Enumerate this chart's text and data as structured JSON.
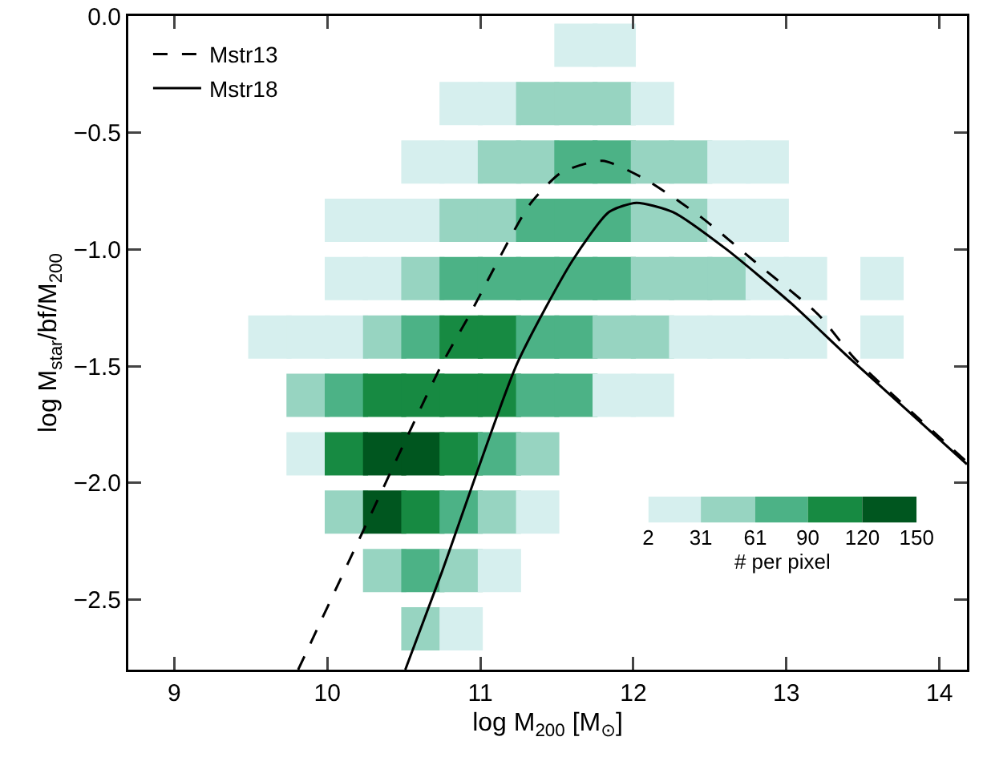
{
  "chart_data": {
    "type": "scatter",
    "xlabel": "log M$_{200}$ [M$_{⊙}$]",
    "ylabel": "log M$_{star}$/bf/M$_{200}$",
    "x2label": "# per pixel",
    "xlim": [
      8.7,
      14.18
    ],
    "ylim": [
      -2.8,
      0
    ],
    "xticks": [
      9,
      10,
      11,
      12,
      13,
      14
    ],
    "yticks": [
      {
        "value": 0,
        "label": "0.0"
      },
      {
        "value": -0.5,
        "label": "−0.5"
      },
      {
        "value": -1,
        "label": "−1.0"
      },
      {
        "value": -1.5,
        "label": "−1.5"
      },
      {
        "value": -2,
        "label": "−2.0"
      },
      {
        "value": -2.5,
        "label": "−2.5"
      }
    ],
    "x2lim": [
      2,
      150
    ],
    "x2ticks": [
      2,
      31,
      61,
      90,
      120,
      150
    ],
    "legend": "top left",
    "grid": false,
    "colors": [
      "#d6efee",
      "#97d4c1",
      "#4cb286",
      "#178a42",
      "#00561f"
    ],
    "series": [
      {
        "marker": "square",
        "x": [
          11.625,
          11.875,
          10.875,
          11.125,
          11.375,
          11.625,
          11.875,
          12.125,
          10.625,
          10.875,
          11.125,
          11.375,
          11.625,
          11.875,
          12.125,
          12.375,
          12.625,
          12.875,
          10.125,
          10.375,
          10.625,
          10.875,
          11.125,
          11.375,
          11.625,
          11.875,
          12.125,
          12.375,
          12.625,
          12.875,
          10.125,
          10.375,
          10.625,
          10.875,
          11.125,
          11.375,
          11.625,
          11.875,
          12.125,
          12.375,
          12.625,
          12.875,
          13.125,
          13.625,
          9.625,
          9.875,
          10.125,
          10.375,
          10.625,
          10.875,
          11.125,
          11.375,
          11.625,
          11.875,
          12.125,
          12.375,
          12.625,
          12.875,
          13.125,
          13.625,
          9.875,
          10.125,
          10.375,
          10.625,
          10.875,
          11.125,
          11.375,
          11.625,
          11.875,
          12.125,
          9.875,
          10.125,
          10.375,
          10.625,
          10.875,
          11.125,
          11.375,
          10.125,
          10.375,
          10.625,
          10.875,
          11.125,
          11.375,
          10.375,
          10.625,
          10.875,
          11.125,
          10.625,
          10.875
        ],
        "values": [
          -0.125,
          -0.125,
          -0.375,
          -0.375,
          -0.375,
          -0.375,
          -0.375,
          -0.375,
          -0.625,
          -0.625,
          -0.625,
          -0.625,
          -0.625,
          -0.625,
          -0.625,
          -0.625,
          -0.625,
          -0.625,
          -0.875,
          -0.875,
          -0.875,
          -0.875,
          -0.875,
          -0.875,
          -0.875,
          -0.875,
          -0.875,
          -0.875,
          -0.875,
          -0.875,
          -1.125,
          -1.125,
          -1.125,
          -1.125,
          -1.125,
          -1.125,
          -1.125,
          -1.125,
          -1.125,
          -1.125,
          -1.125,
          -1.125,
          -1.125,
          -1.125,
          -1.375,
          -1.375,
          -1.375,
          -1.375,
          -1.375,
          -1.375,
          -1.375,
          -1.375,
          -1.375,
          -1.375,
          -1.375,
          -1.375,
          -1.375,
          -1.375,
          -1.375,
          -1.375,
          -1.625,
          -1.625,
          -1.625,
          -1.625,
          -1.625,
          -1.625,
          -1.625,
          -1.625,
          -1.625,
          -1.625,
          -1.875,
          -1.875,
          -1.875,
          -1.875,
          -1.875,
          -1.875,
          -1.875,
          -2.125,
          -2.125,
          -2.125,
          -2.125,
          -2.125,
          -2.125,
          -2.375,
          -2.375,
          -2.375,
          -2.375,
          -2.625,
          -2.625
        ],
        "colors": [
          "#d6efee",
          "#d6efee",
          "#d6efee",
          "#d6efee",
          "#97d4c1",
          "#97d4c1",
          "#97d4c1",
          "#d6efee",
          "#d6efee",
          "#d6efee",
          "#97d4c1",
          "#97d4c1",
          "#4cb286",
          "#4cb286",
          "#97d4c1",
          "#97d4c1",
          "#d6efee",
          "#d6efee",
          "#d6efee",
          "#d6efee",
          "#d6efee",
          "#97d4c1",
          "#97d4c1",
          "#4cb286",
          "#4cb286",
          "#4cb286",
          "#97d4c1",
          "#97d4c1",
          "#d6efee",
          "#d6efee",
          "#d6efee",
          "#d6efee",
          "#97d4c1",
          "#4cb286",
          "#4cb286",
          "#4cb286",
          "#4cb286",
          "#4cb286",
          "#97d4c1",
          "#97d4c1",
          "#97d4c1",
          "#d6efee",
          "#d6efee",
          "#d6efee",
          "#d6efee",
          "#d6efee",
          "#d6efee",
          "#97d4c1",
          "#4cb286",
          "#178a42",
          "#178a42",
          "#4cb286",
          "#4cb286",
          "#97d4c1",
          "#97d4c1",
          "#d6efee",
          "#d6efee",
          "#d6efee",
          "#d6efee",
          "#d6efee",
          "#97d4c1",
          "#4cb286",
          "#178a42",
          "#178a42",
          "#178a42",
          "#178a42",
          "#4cb286",
          "#4cb286",
          "#d6efee",
          "#d6efee",
          "#d6efee",
          "#178a42",
          "#00561f",
          "#00561f",
          "#178a42",
          "#4cb286",
          "#97d4c1",
          "#97d4c1",
          "#00561f",
          "#178a42",
          "#4cb286",
          "#97d4c1",
          "#d6efee",
          "#97d4c1",
          "#4cb286",
          "#97d4c1",
          "#d6efee",
          "#97d4c1",
          "#d6efee"
        ]
      },
      {
        "type": "line",
        "name": "Mstr13",
        "color": "#000000",
        "line_style": "dashed",
        "x": [
          9.81,
          10.26,
          10.75,
          10.93,
          11.32,
          11.53,
          11.8,
          12.08,
          12.44,
          12.79,
          13.21,
          13.45,
          14.18
        ],
        "values": [
          -2.8,
          -2.17,
          -1.49,
          -1.28,
          -0.81,
          -0.67,
          -0.62,
          -0.7,
          -0.86,
          -1.05,
          -1.28,
          -1.47,
          -1.91
        ]
      },
      {
        "type": "line",
        "name": "Mstr18",
        "color": "#000000",
        "line_style": "solid",
        "x": [
          10.51,
          10.75,
          11.24,
          11.6,
          11.84,
          12.02,
          12.26,
          12.61,
          13.03,
          13.42,
          14.18
        ],
        "values": [
          -2.8,
          -2.38,
          -1.49,
          -1.05,
          -0.84,
          -0.8,
          -0.84,
          -1.0,
          -1.23,
          -1.47,
          -1.92
        ]
      }
    ]
  }
}
